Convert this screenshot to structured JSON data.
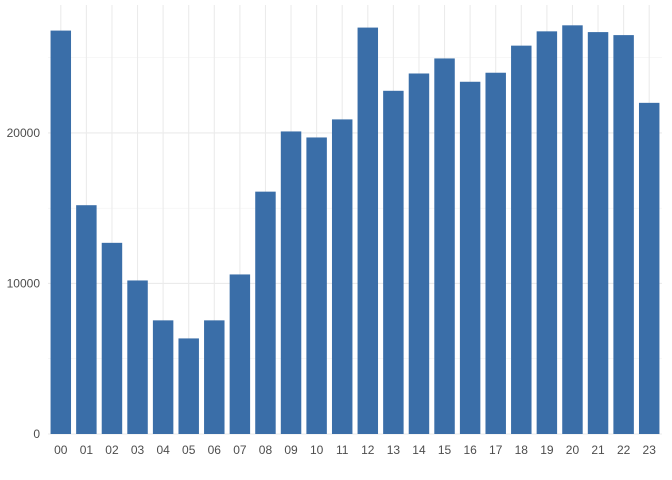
{
  "chart_data": {
    "type": "bar",
    "title": "",
    "xlabel": "",
    "ylabel": "",
    "categories": [
      "00",
      "01",
      "02",
      "03",
      "04",
      "05",
      "06",
      "07",
      "08",
      "09",
      "10",
      "11",
      "12",
      "13",
      "14",
      "15",
      "16",
      "17",
      "18",
      "19",
      "20",
      "21",
      "22",
      "23"
    ],
    "values": [
      26800,
      15200,
      12700,
      10200,
      7550,
      6350,
      7550,
      10600,
      16100,
      20100,
      19700,
      20900,
      27000,
      22800,
      23950,
      24950,
      23400,
      24000,
      25800,
      26750,
      27150,
      26700,
      26500,
      22000
    ],
    "ylim": [
      0,
      28500
    ],
    "yticks": [
      0,
      10000,
      20000
    ],
    "ytick_labels": [
      "0",
      "10000",
      "20000"
    ],
    "minor_yticks": [
      5000,
      15000,
      25000
    ],
    "grid": true,
    "legend": "none",
    "bar_color": "#3a6ea8"
  }
}
